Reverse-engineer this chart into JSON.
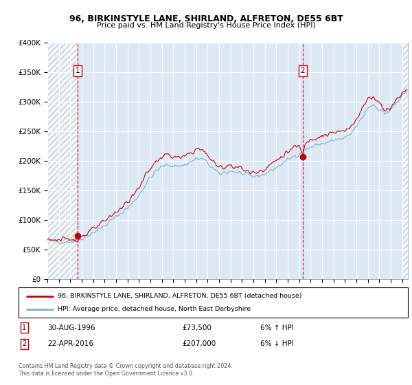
{
  "title1": "96, BIRKINSTYLE LANE, SHIRLAND, ALFRETON, DE55 6BT",
  "title2": "Price paid vs. HM Land Registry's House Price Index (HPI)",
  "ylim": [
    0,
    400000
  ],
  "yticks": [
    0,
    50000,
    100000,
    150000,
    200000,
    250000,
    300000,
    350000,
    400000
  ],
  "ytick_labels": [
    "£0",
    "£50K",
    "£100K",
    "£150K",
    "£200K",
    "£250K",
    "£300K",
    "£350K",
    "£400K"
  ],
  "xlim_start": 1994.0,
  "xlim_end": 2025.5,
  "plot_bg_color": "#dce9f5",
  "grid_color": "#ffffff",
  "red_line_color": "#cc0000",
  "blue_line_color": "#7ab0d4",
  "sale1_date": 1996.66,
  "sale1_price": 73500,
  "sale2_date": 2016.31,
  "sale2_price": 207000,
  "legend_label1": "96, BIRKINSTYLE LANE, SHIRLAND, ALFRETON, DE55 6BT (detached house)",
  "legend_label2": "HPI: Average price, detached house, North East Derbyshire",
  "footer": "Contains HM Land Registry data © Crown copyright and database right 2024.\nThis data is licensed under the Open Government Licence v3.0."
}
